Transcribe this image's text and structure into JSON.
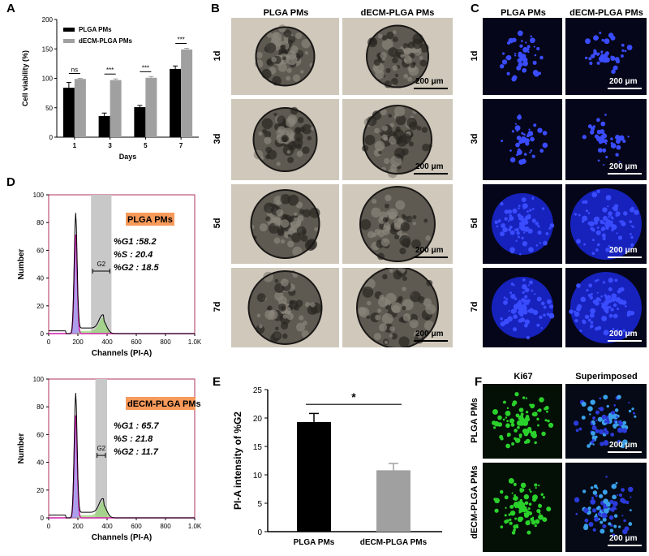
{
  "panels": {
    "A": "A",
    "B": "B",
    "C": "C",
    "D": "D",
    "E": "E",
    "F": "F"
  },
  "chart_data": [
    {
      "id": "A",
      "type": "bar",
      "ylabel": "Cell viability (%)",
      "xlabel": "Days",
      "ylim": [
        0,
        200
      ],
      "yticks": [
        "0",
        "50",
        "100",
        "150",
        "200"
      ],
      "categories": [
        "1",
        "3",
        "5",
        "7"
      ],
      "legend_position": "top-left",
      "series": [
        {
          "name": "PLGA PMs",
          "color": "#000000",
          "values": [
            84,
            36,
            51,
            116
          ],
          "errors": [
            9,
            5,
            3,
            5
          ]
        },
        {
          "name": "dECM-PLGA PMs",
          "color": "#a0a0a0",
          "values": [
            99,
            97,
            101,
            149
          ],
          "errors": [
            1,
            2,
            2,
            2
          ]
        }
      ],
      "significance": [
        "ns",
        "***",
        "***",
        "***"
      ]
    },
    {
      "id": "D1",
      "type": "line",
      "xlabel": "Channels (PI-A)",
      "ylabel": "Number",
      "xticks": [
        "0",
        "200",
        "400",
        "600",
        "800",
        "1.0K"
      ],
      "yticks": [
        "0",
        "20",
        "40",
        "60",
        "80",
        "100"
      ],
      "ylim": [
        0,
        100
      ],
      "gate_label": "G2",
      "box_title": "PLGA PMs",
      "stats": [
        "%G1 :58.2",
        "%S : 20.4",
        "%G2 : 18.5"
      ],
      "peak": 87
    },
    {
      "id": "D2",
      "type": "line",
      "xlabel": "Channels (PI-A)",
      "ylabel": "Number",
      "xticks": [
        "0",
        "200",
        "400",
        "600",
        "800",
        "1.0K"
      ],
      "yticks": [
        "0",
        "20",
        "40",
        "60",
        "80",
        "100"
      ],
      "ylim": [
        0,
        100
      ],
      "gate_label": "G2",
      "box_title": "dECM-PLGA PMs",
      "stats": [
        "%G1 : 65.7",
        "%S : 21.8",
        "%G2 : 11.7"
      ],
      "peak": 90
    },
    {
      "id": "E",
      "type": "bar",
      "ylabel": "PI-A intensity of %G2",
      "ylim": [
        0,
        25
      ],
      "yticks": [
        "0",
        "5",
        "10",
        "15",
        "20",
        "25"
      ],
      "categories": [
        "PLGA PMs",
        "dECM-PLGA PMs"
      ],
      "values": [
        19.3,
        10.8
      ],
      "errors": [
        1.5,
        1.2
      ],
      "colors": [
        "#000000",
        "#a0a0a0"
      ],
      "significance": "*"
    }
  ],
  "micrographs": {
    "B": {
      "cols": [
        "PLGA PMs",
        "dECM-PLGA PMs"
      ],
      "rows": [
        "1d",
        "3d",
        "5d",
        "7d"
      ],
      "scale": "200 μm"
    },
    "C": {
      "cols": [
        "PLGA PMs",
        "dECM-PLGA PMs"
      ],
      "rows": [
        "1d",
        "3d",
        "5d",
        "7d"
      ],
      "scale": "200 μm"
    },
    "F": {
      "cols": [
        "Ki67",
        "Superimposed"
      ],
      "rows": [
        "PLGA PMs",
        "dECM-PLGA PMs"
      ],
      "scale": "200 μm"
    }
  }
}
